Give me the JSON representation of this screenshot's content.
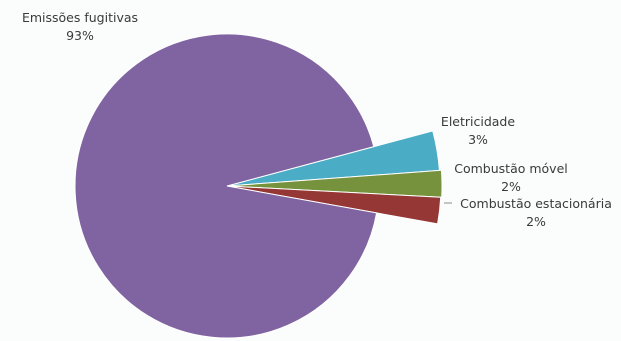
{
  "chart_data": {
    "type": "pie",
    "title": "",
    "legend": "none",
    "slices": [
      {
        "label": "Emissões fugitivas",
        "value_label": "93%",
        "value": 93,
        "color": "#8064a2"
      },
      {
        "label": "Eletricidade",
        "value_label": "3%",
        "value": 3,
        "color": "#4bacc6"
      },
      {
        "label": "Combustão móvel",
        "value_label": "2%",
        "value": 2,
        "color": "#76923c"
      },
      {
        "label": "Combustão estacionária",
        "value_label": "2%",
        "value": 2,
        "color": "#953735"
      }
    ]
  }
}
